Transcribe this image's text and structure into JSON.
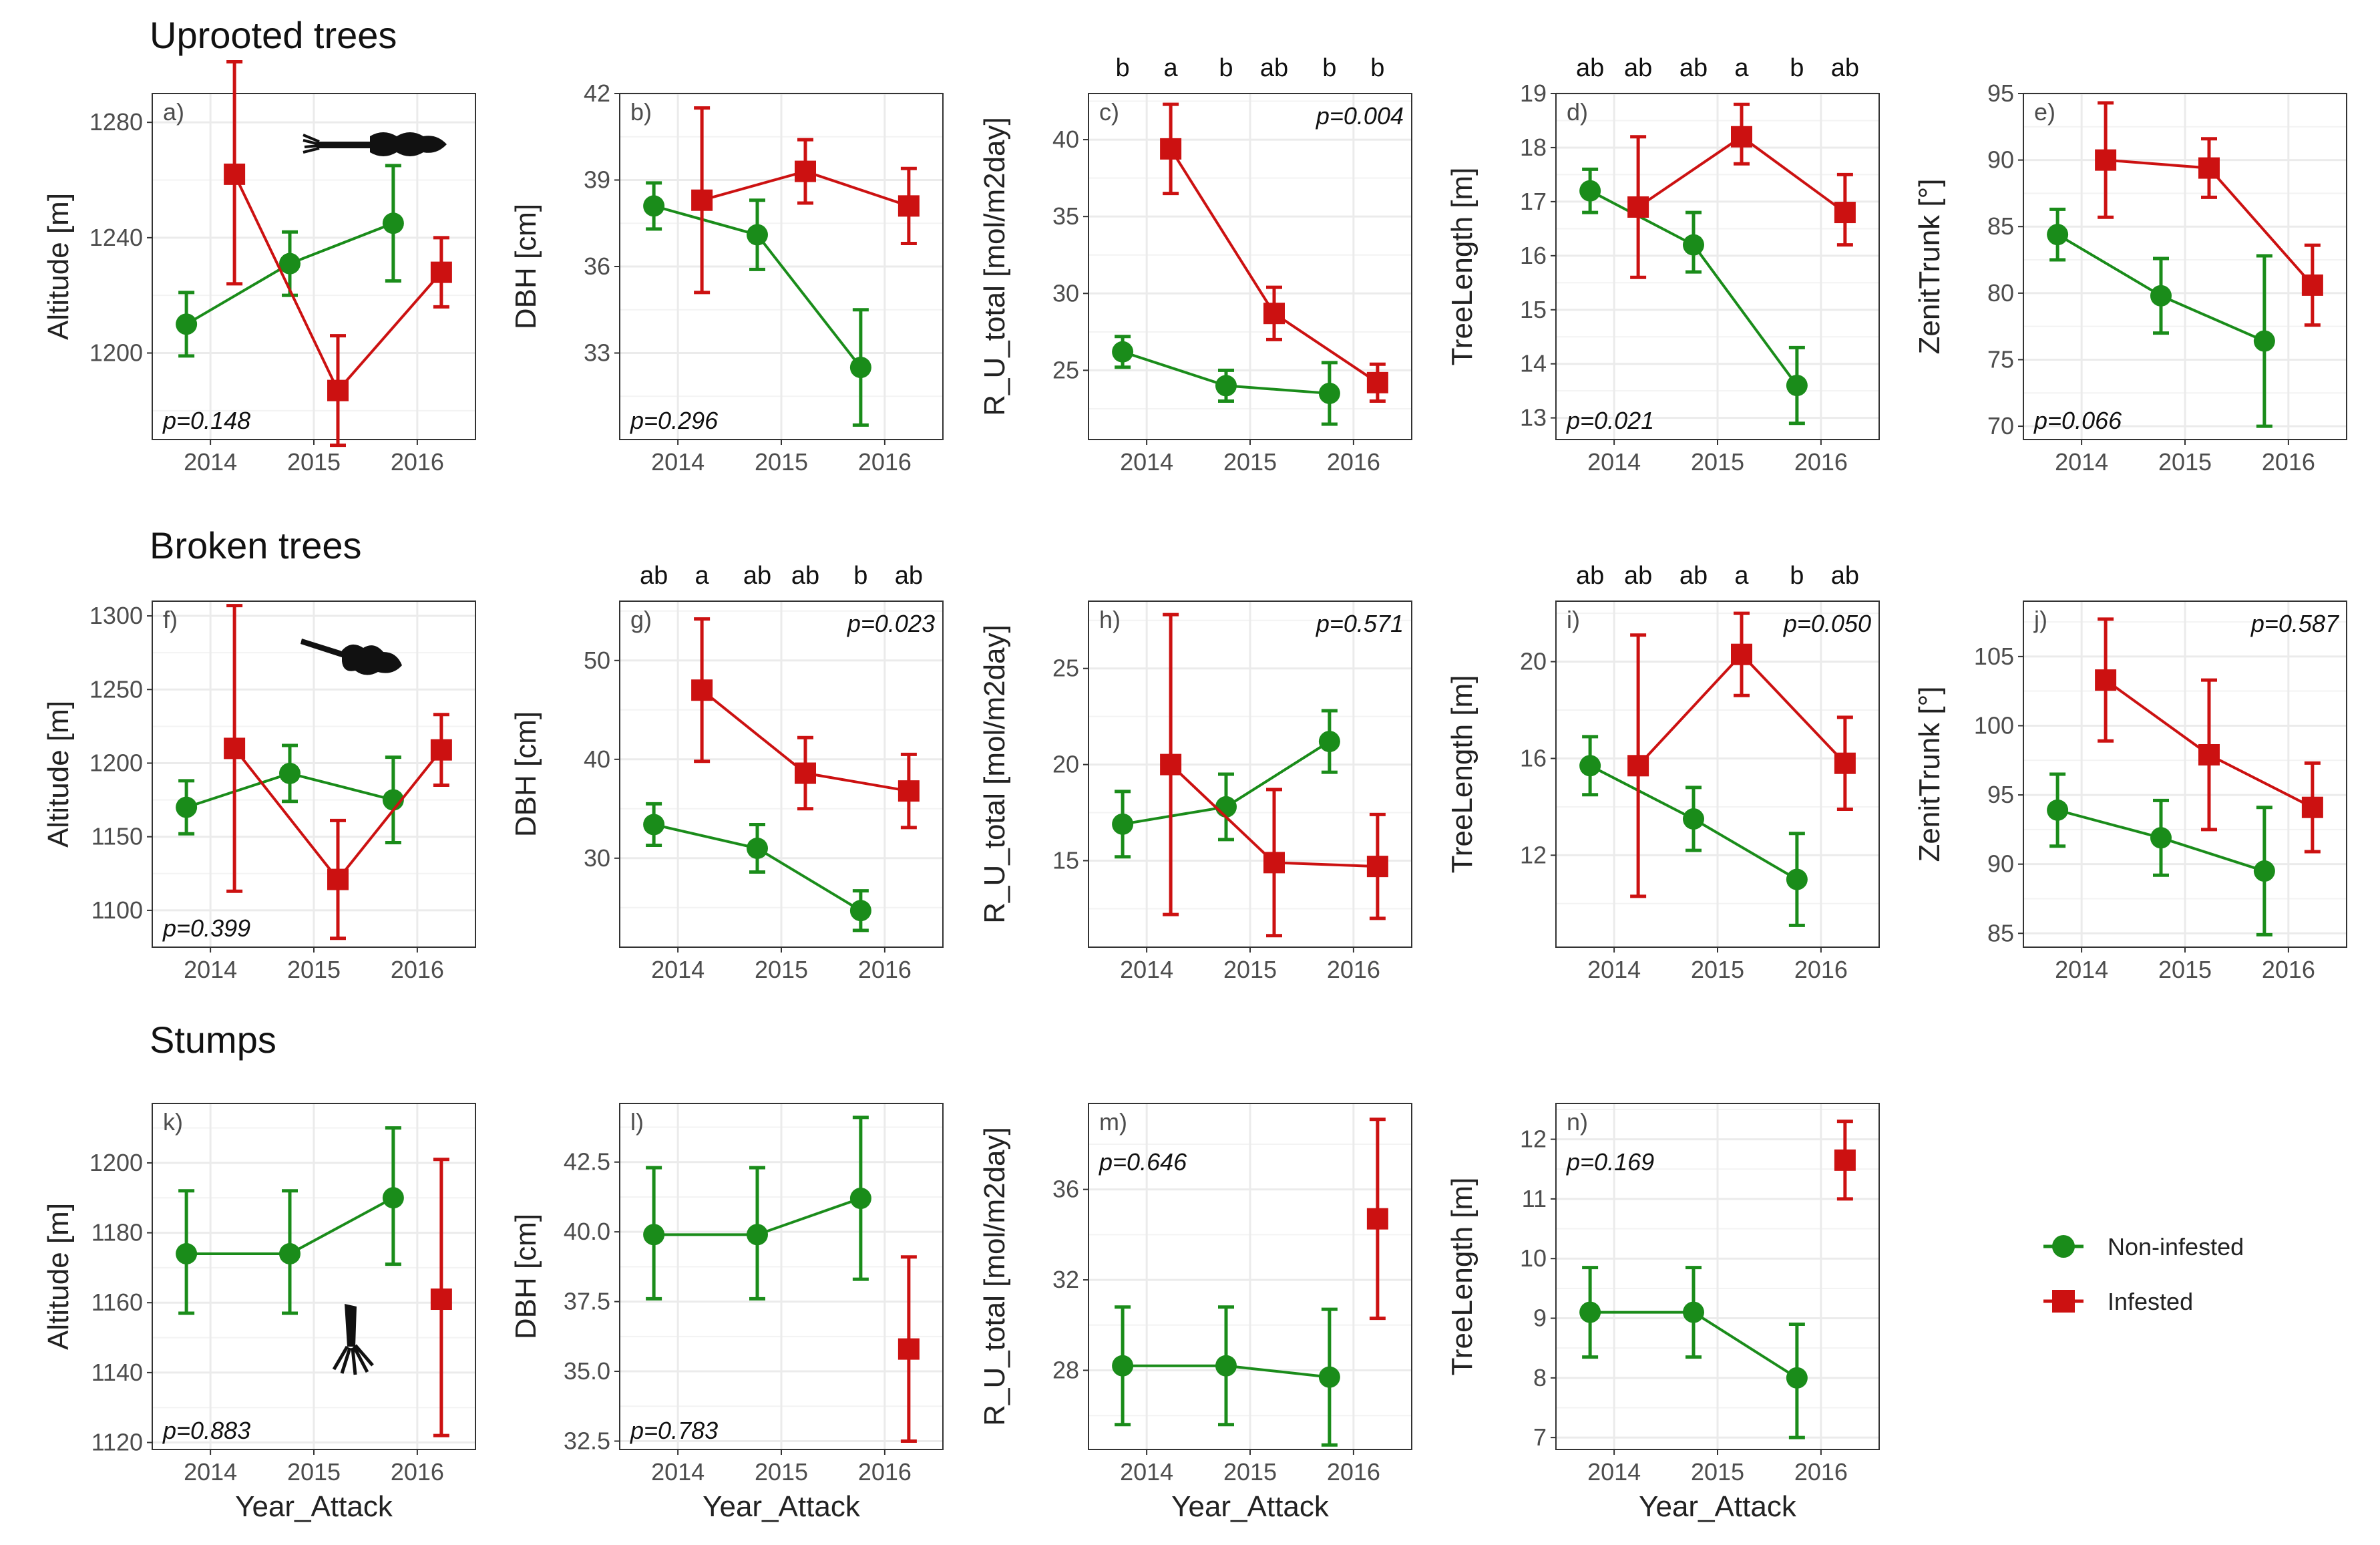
{
  "colors": {
    "non_infested": "#1a8c1a",
    "infested": "#cc1111",
    "grid": "#ebebeb",
    "border": "#333333"
  },
  "row_titles": [
    "Uprooted trees",
    "Broken trees",
    "Stumps"
  ],
  "x_axis_title": "Year_Attack",
  "legend": {
    "non_infested": "Non-infested",
    "infested": "Infested"
  },
  "chart_data": [
    {
      "id": "a",
      "tag": "a)",
      "type": "line",
      "row": 0,
      "col": 0,
      "ylabel": "Altitude [m]",
      "pvalue": "p=0.148",
      "p_pos": "bottom-left",
      "ylim": [
        1170,
        1290
      ],
      "yticks": [
        1200,
        1240,
        1280
      ],
      "ytick_labels": [
        "1200",
        "1240",
        "1280"
      ],
      "x_categories": [
        "2014",
        "2015",
        "2016"
      ],
      "series": [
        {
          "name": "Non-infested",
          "values": [
            1210,
            1231,
            1245
          ],
          "lower": [
            1199,
            1220,
            1225
          ],
          "upper": [
            1221,
            1242,
            1265
          ]
        },
        {
          "name": "Infested",
          "values": [
            1262,
            1187,
            1228
          ],
          "lower": [
            1224,
            1168,
            1216
          ],
          "upper": [
            1301,
            1206,
            1240
          ]
        }
      ],
      "letters": null,
      "icon": "uprooted-tree-icon"
    },
    {
      "id": "b",
      "tag": "b)",
      "type": "line",
      "row": 0,
      "col": 1,
      "ylabel": "DBH [cm]",
      "pvalue": "p=0.296",
      "p_pos": "bottom-left",
      "ylim": [
        30,
        42
      ],
      "yticks": [
        33,
        36,
        39,
        42
      ],
      "ytick_labels": [
        "33",
        "36",
        "39",
        "42"
      ],
      "x_categories": [
        "2014",
        "2015",
        "2016"
      ],
      "series": [
        {
          "name": "Non-infested",
          "values": [
            38.1,
            37.1,
            32.5
          ],
          "lower": [
            37.3,
            35.9,
            30.5
          ],
          "upper": [
            38.9,
            38.3,
            34.5
          ]
        },
        {
          "name": "Infested",
          "values": [
            38.3,
            39.3,
            38.1
          ],
          "lower": [
            35.1,
            38.2,
            36.8
          ],
          "upper": [
            41.5,
            40.4,
            39.4
          ]
        }
      ],
      "letters": null,
      "icon": null
    },
    {
      "id": "c",
      "tag": "c)",
      "type": "line",
      "row": 0,
      "col": 2,
      "ylabel": "R_U_total [mol/m2day]",
      "pvalue": "p=0.004",
      "p_pos": "top-right",
      "ylim": [
        20.5,
        43
      ],
      "yticks": [
        25,
        30,
        35,
        40
      ],
      "ytick_labels": [
        "25",
        "30",
        "35",
        "40"
      ],
      "x_categories": [
        "2014",
        "2015",
        "2016"
      ],
      "series": [
        {
          "name": "Non-infested",
          "values": [
            26.2,
            24.0,
            23.5
          ],
          "lower": [
            25.2,
            23.0,
            21.5
          ],
          "upper": [
            27.2,
            25.0,
            25.5
          ]
        },
        {
          "name": "Infested",
          "values": [
            39.4,
            28.7,
            24.2
          ],
          "lower": [
            36.5,
            27.0,
            23.0
          ],
          "upper": [
            42.3,
            30.4,
            25.4
          ]
        }
      ],
      "letters": [
        "b",
        "a",
        "b",
        "ab",
        "b",
        "b"
      ],
      "icon": null
    },
    {
      "id": "d",
      "tag": "d)",
      "type": "line",
      "row": 0,
      "col": 3,
      "ylabel": "TreeLength [m]",
      "pvalue": "p=0.021",
      "p_pos": "bottom-left",
      "ylim": [
        12.6,
        19
      ],
      "yticks": [
        13,
        14,
        15,
        16,
        17,
        18,
        19
      ],
      "ytick_labels": [
        "13",
        "14",
        "15",
        "16",
        "17",
        "18",
        "19"
      ],
      "x_categories": [
        "2014",
        "2015",
        "2016"
      ],
      "series": [
        {
          "name": "Non-infested",
          "values": [
            17.2,
            16.2,
            13.6
          ],
          "lower": [
            16.8,
            15.7,
            12.9
          ],
          "upper": [
            17.6,
            16.8,
            14.3
          ]
        },
        {
          "name": "Infested",
          "values": [
            16.9,
            18.2,
            16.8
          ],
          "lower": [
            15.6,
            17.7,
            16.2
          ],
          "upper": [
            18.2,
            18.8,
            17.5
          ]
        }
      ],
      "letters": [
        "ab",
        "ab",
        "ab",
        "a",
        "b",
        "ab"
      ],
      "icon": null
    },
    {
      "id": "e",
      "tag": "e)",
      "type": "line",
      "row": 0,
      "col": 4,
      "ylabel": "ZenitTrunk [°]",
      "pvalue": "p=0.066",
      "p_pos": "bottom-left",
      "ylim": [
        69,
        95
      ],
      "yticks": [
        70,
        75,
        80,
        85,
        90,
        95
      ],
      "ytick_labels": [
        "70",
        "75",
        "80",
        "85",
        "90",
        "95"
      ],
      "x_categories": [
        "2014",
        "2015",
        "2016"
      ],
      "series": [
        {
          "name": "Non-infested",
          "values": [
            84.4,
            79.8,
            76.4
          ],
          "lower": [
            82.5,
            77.0,
            70.0
          ],
          "upper": [
            86.3,
            82.6,
            82.8
          ]
        },
        {
          "name": "Infested",
          "values": [
            90.0,
            89.4,
            80.6
          ],
          "lower": [
            85.7,
            87.2,
            77.6
          ],
          "upper": [
            94.3,
            91.6,
            83.6
          ]
        }
      ],
      "letters": null,
      "icon": null
    },
    {
      "id": "f",
      "tag": "f)",
      "type": "line",
      "row": 1,
      "col": 0,
      "ylabel": "Altitude [m]",
      "pvalue": "p=0.399",
      "p_pos": "bottom-left",
      "ylim": [
        1075,
        1310
      ],
      "yticks": [
        1100,
        1150,
        1200,
        1250,
        1300
      ],
      "ytick_labels": [
        "1100",
        "1150",
        "1200",
        "1250",
        "1300"
      ],
      "x_categories": [
        "2014",
        "2015",
        "2016"
      ],
      "series": [
        {
          "name": "Non-infested",
          "values": [
            1170,
            1193,
            1175
          ],
          "lower": [
            1152,
            1174,
            1146
          ],
          "upper": [
            1188,
            1212,
            1204
          ]
        },
        {
          "name": "Infested",
          "values": [
            1210,
            1121,
            1209
          ],
          "lower": [
            1113,
            1081,
            1185
          ],
          "upper": [
            1307,
            1161,
            1233
          ]
        }
      ],
      "letters": null,
      "icon": "broken-tree-icon"
    },
    {
      "id": "g",
      "tag": "g)",
      "type": "line",
      "row": 1,
      "col": 1,
      "ylabel": "DBH [cm]",
      "pvalue": "p=0.023",
      "p_pos": "top-right",
      "ylim": [
        21,
        56
      ],
      "yticks": [
        30,
        40,
        50
      ],
      "ytick_labels": [
        "30",
        "40",
        "50"
      ],
      "x_categories": [
        "2014",
        "2015",
        "2016"
      ],
      "series": [
        {
          "name": "Non-infested",
          "values": [
            33.4,
            31.0,
            24.7
          ],
          "lower": [
            31.3,
            28.6,
            22.7
          ],
          "upper": [
            35.5,
            33.4,
            26.7
          ]
        },
        {
          "name": "Infested",
          "values": [
            47.0,
            38.6,
            36.8
          ],
          "lower": [
            39.8,
            35.0,
            33.1
          ],
          "upper": [
            54.2,
            42.2,
            40.5
          ]
        }
      ],
      "letters": [
        "ab",
        "a",
        "ab",
        "ab",
        "b",
        "ab"
      ],
      "icon": null
    },
    {
      "id": "h",
      "tag": "h)",
      "type": "line",
      "row": 1,
      "col": 2,
      "ylabel": "R_U_total [mol/m2day]",
      "pvalue": "p=0.571",
      "p_pos": "top-right",
      "ylim": [
        10.5,
        28.5
      ],
      "yticks": [
        15,
        20,
        25
      ],
      "ytick_labels": [
        "15",
        "20",
        "25"
      ],
      "x_categories": [
        "2014",
        "2015",
        "2016"
      ],
      "series": [
        {
          "name": "Non-infested",
          "values": [
            16.9,
            17.8,
            21.2
          ],
          "lower": [
            15.2,
            16.1,
            19.6
          ],
          "upper": [
            18.6,
            19.5,
            22.8
          ]
        },
        {
          "name": "Infested",
          "values": [
            20.0,
            14.9,
            14.7
          ],
          "lower": [
            12.2,
            11.1,
            12.0
          ],
          "upper": [
            27.8,
            18.7,
            17.4
          ]
        }
      ],
      "letters": null,
      "icon": null
    },
    {
      "id": "i",
      "tag": "i)",
      "type": "line",
      "row": 1,
      "col": 3,
      "ylabel": "TreeLength [m]",
      "pvalue": "p=0.050",
      "p_pos": "top-right",
      "ylim": [
        8.2,
        22.5
      ],
      "yticks": [
        12,
        16,
        20
      ],
      "ytick_labels": [
        "12",
        "16",
        "20"
      ],
      "x_categories": [
        "2014",
        "2015",
        "2016"
      ],
      "series": [
        {
          "name": "Non-infested",
          "values": [
            15.7,
            13.5,
            11.0
          ],
          "lower": [
            14.5,
            12.2,
            9.1
          ],
          "upper": [
            16.9,
            14.8,
            12.9
          ]
        },
        {
          "name": "Infested",
          "values": [
            15.7,
            20.3,
            15.8
          ],
          "lower": [
            10.3,
            18.6,
            13.9
          ],
          "upper": [
            21.1,
            22.0,
            17.7
          ]
        }
      ],
      "letters": [
        "ab",
        "ab",
        "ab",
        "a",
        "b",
        "ab"
      ],
      "icon": null
    },
    {
      "id": "j",
      "tag": "j)",
      "type": "line",
      "row": 1,
      "col": 4,
      "ylabel": "ZenitTrunk [°]",
      "pvalue": "p=0.587",
      "p_pos": "top-right",
      "ylim": [
        84,
        109
      ],
      "yticks": [
        85,
        90,
        95,
        100,
        105
      ],
      "ytick_labels": [
        "85",
        "90",
        "95",
        "100",
        "105"
      ],
      "x_categories": [
        "2014",
        "2015",
        "2016"
      ],
      "series": [
        {
          "name": "Non-infested",
          "values": [
            93.9,
            91.9,
            89.5
          ],
          "lower": [
            91.3,
            89.2,
            84.9
          ],
          "upper": [
            96.5,
            94.6,
            94.1
          ]
        },
        {
          "name": "Infested",
          "values": [
            103.3,
            97.9,
            94.1
          ],
          "lower": [
            98.9,
            92.5,
            90.9
          ],
          "upper": [
            107.7,
            103.3,
            97.3
          ]
        }
      ],
      "letters": null,
      "icon": null
    },
    {
      "id": "k",
      "tag": "k)",
      "type": "line",
      "row": 2,
      "col": 0,
      "ylabel": "Altitude [m]",
      "pvalue": "p=0.883",
      "p_pos": "bottom-left",
      "ylim": [
        1118,
        1217
      ],
      "yticks": [
        1120,
        1140,
        1160,
        1180,
        1200
      ],
      "ytick_labels": [
        "1120",
        "1140",
        "1160",
        "1180",
        "1200"
      ],
      "x_categories": [
        "2014",
        "2015",
        "2016"
      ],
      "series": [
        {
          "name": "Non-infested",
          "values": [
            1174,
            1174,
            1190
          ],
          "lower": [
            1157,
            1157,
            1171
          ],
          "upper": [
            1192,
            1192,
            1210
          ]
        },
        {
          "name": "Infested",
          "values": [
            null,
            null,
            1161
          ],
          "lower": [
            null,
            null,
            1122
          ],
          "upper": [
            null,
            null,
            1201
          ]
        }
      ],
      "letters": null,
      "icon": "stump-icon"
    },
    {
      "id": "l",
      "tag": "l)",
      "type": "line",
      "row": 2,
      "col": 1,
      "ylabel": "DBH [cm]",
      "pvalue": "p=0.783",
      "p_pos": "bottom-left",
      "ylim": [
        32.2,
        44.6
      ],
      "yticks": [
        32.5,
        35.0,
        37.5,
        40.0,
        42.5
      ],
      "ytick_labels": [
        "32.5",
        "35.0",
        "37.5",
        "40.0",
        "42.5"
      ],
      "x_categories": [
        "2014",
        "2015",
        "2016"
      ],
      "series": [
        {
          "name": "Non-infested",
          "values": [
            39.9,
            39.9,
            41.2
          ],
          "lower": [
            37.6,
            37.6,
            38.3
          ],
          "upper": [
            42.3,
            42.3,
            44.1
          ]
        },
        {
          "name": "Infested",
          "values": [
            null,
            null,
            35.8
          ],
          "lower": [
            null,
            null,
            32.5
          ],
          "upper": [
            null,
            null,
            39.1
          ]
        }
      ],
      "letters": null,
      "icon": null
    },
    {
      "id": "m",
      "tag": "m)",
      "type": "line",
      "row": 2,
      "col": 2,
      "ylabel": "R_U_total [mol/m2day]",
      "pvalue": "p=0.646",
      "p_pos": "upper-left",
      "ylim": [
        24.5,
        39.8
      ],
      "yticks": [
        28,
        32,
        36
      ],
      "ytick_labels": [
        "28",
        "32",
        "36"
      ],
      "x_categories": [
        "2014",
        "2015",
        "2016"
      ],
      "series": [
        {
          "name": "Non-infested",
          "values": [
            28.2,
            28.2,
            27.7
          ],
          "lower": [
            25.6,
            25.6,
            24.7
          ],
          "upper": [
            30.8,
            30.8,
            30.7
          ]
        },
        {
          "name": "Infested",
          "values": [
            null,
            null,
            34.7
          ],
          "lower": [
            null,
            null,
            30.3
          ],
          "upper": [
            null,
            null,
            39.1
          ]
        }
      ],
      "letters": null,
      "icon": null
    },
    {
      "id": "n",
      "tag": "n)",
      "type": "line",
      "row": 2,
      "col": 3,
      "ylabel": "TreeLength [m]",
      "pvalue": "p=0.169",
      "p_pos": "upper-left",
      "ylim": [
        6.8,
        12.6
      ],
      "yticks": [
        7,
        8,
        9,
        10,
        11,
        12
      ],
      "ytick_labels": [
        "7",
        "8",
        "9",
        "10",
        "11",
        "12"
      ],
      "x_categories": [
        "2014",
        "2015",
        "2016"
      ],
      "series": [
        {
          "name": "Non-infested",
          "values": [
            9.1,
            9.1,
            8.0
          ],
          "lower": [
            8.35,
            8.35,
            7.0
          ],
          "upper": [
            9.85,
            9.85,
            8.9
          ]
        },
        {
          "name": "Infested",
          "values": [
            null,
            null,
            11.65
          ],
          "lower": [
            null,
            null,
            11.0
          ],
          "upper": [
            null,
            null,
            12.3
          ]
        }
      ],
      "letters": null,
      "icon": null
    }
  ]
}
